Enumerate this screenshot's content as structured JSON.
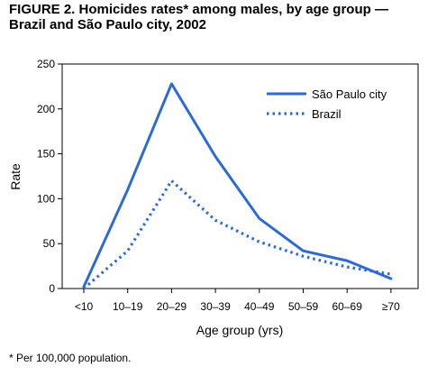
{
  "figure": {
    "title_line1": "FIGURE 2. Homicides rates* among males, by age group —",
    "title_line2": "Brazil and São Paulo city, 2002",
    "footnote": "* Per 100,000 population."
  },
  "chart_data": {
    "type": "line",
    "xlabel": "Age group (yrs)",
    "ylabel": "Rate",
    "ylim": [
      0,
      250
    ],
    "yticks": [
      "0",
      "50",
      "100",
      "150",
      "200",
      "250"
    ],
    "categories": [
      "<10",
      "10–19",
      "20–29",
      "30–39",
      "40–49",
      "50–59",
      "60–69",
      "≥70"
    ],
    "series": [
      {
        "name": "São Paulo city",
        "style": "solid",
        "color": "#2a6bd9",
        "values": [
          2,
          110,
          228,
          147,
          78,
          42,
          31,
          11
        ]
      },
      {
        "name": "Brazil",
        "style": "dotted",
        "color": "#2a6bd9",
        "values": [
          0,
          42,
          120,
          76,
          52,
          36,
          24,
          16
        ]
      }
    ],
    "grid": false,
    "legend_position": "top-right"
  }
}
